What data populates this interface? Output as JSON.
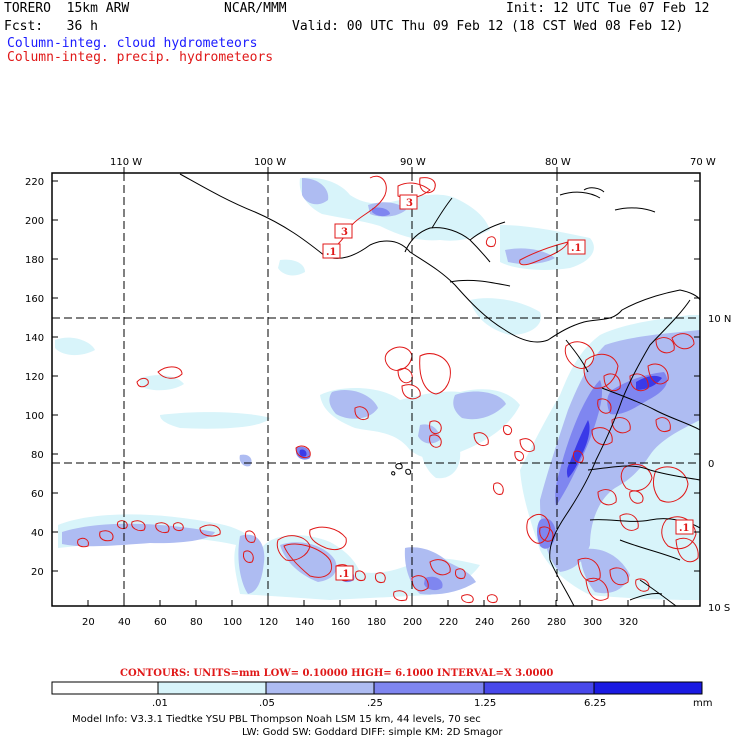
{
  "header": {
    "model": "TORERO  15km ARW",
    "org": "NCAR/MMM",
    "init": "Init: 12 UTC Tue 07 Feb 12",
    "fcst": "Fcst:   36 h",
    "valid": "Valid: 00 UTC Thu 09 Feb 12 (18 CST Wed 08 Feb 12)",
    "field1": "Column-integ. cloud hydrometeors",
    "field2": "Column-integ. precip. hydrometeors"
  },
  "map": {
    "lon_labels": [
      "110 W",
      "100 W",
      "90 W",
      "80 W",
      "70 W"
    ],
    "lat_labels": [
      "10 N",
      "0",
      "10 S"
    ],
    "y_ticks": [
      "220",
      "200",
      "180",
      "160",
      "140",
      "120",
      "100",
      "80",
      "60",
      "40",
      "20"
    ],
    "x_ticks": [
      "20",
      "40",
      "60",
      "80",
      "100",
      "120",
      "140",
      "160",
      "180",
      "200",
      "220",
      "240",
      "260",
      "280",
      "300",
      "320"
    ],
    "contour_labels": [
      ".1",
      ".1",
      "3",
      "3",
      ".1",
      ".1"
    ]
  },
  "contour_info": {
    "text": "CONTOURS:  UNITS=mm  LOW= 0.10000      HIGH=  6.1000      INTERVAL=X  3.0000"
  },
  "legend": {
    "ticks": [
      ".01",
      ".05",
      ".25",
      "1.25",
      "6.25"
    ],
    "unit": "mm",
    "colors": [
      "#ffffff",
      "#d8f4fa",
      "#aebcf2",
      "#7f86f0",
      "#5454ee",
      "#2a2ae6",
      "#1010e0"
    ]
  },
  "footer": {
    "line1": "Model Info: V3.3.1   Tiedtke YSU PBL  Thompson     Noah LSM  15 km,    44 levels,    70 sec",
    "line2": "LW: Godd SW: Goddard DIFF: simple KM: 2D Smagor"
  }
}
